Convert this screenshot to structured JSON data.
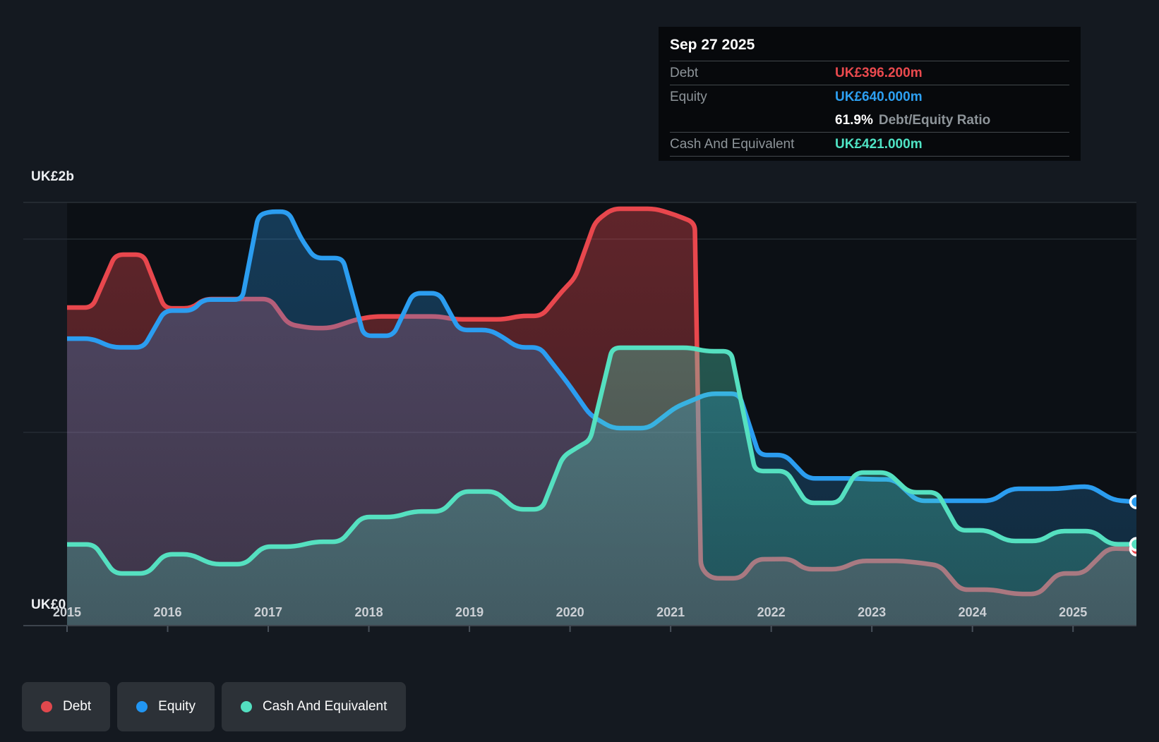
{
  "tooltip": {
    "date": "Sep 27 2025",
    "debt_label": "Debt",
    "debt_value": "UK£396.200m",
    "equity_label": "Equity",
    "equity_value": "UK£640.000m",
    "ratio_value": "61.9%",
    "ratio_label": "Debt/Equity Ratio",
    "cash_label": "Cash And Equivalent",
    "cash_value": "UK£421.000m"
  },
  "axes": {
    "y_top_label": "UK£2b",
    "y_bottom_label": "UK£0",
    "years": [
      "2015",
      "2016",
      "2017",
      "2018",
      "2019",
      "2020",
      "2021",
      "2022",
      "2023",
      "2024",
      "2025"
    ]
  },
  "legend": {
    "items": [
      {
        "label": "Debt",
        "color": "#e0484d"
      },
      {
        "label": "Equity",
        "color": "#2196f3"
      },
      {
        "label": "Cash And Equivalent",
        "color": "#53dfc0"
      }
    ]
  },
  "chart_data": {
    "type": "area",
    "unit": "UK£ millions",
    "title": "Debt to Equity History",
    "x_range": [
      2015.0,
      2025.63
    ],
    "ylim": [
      0,
      2190
    ],
    "grid_values": [
      2000,
      1000,
      0
    ],
    "y_axis_labels": [
      {
        "text": "UK£2b",
        "value": 2000
      },
      {
        "text": "UK£0",
        "value": 0
      }
    ],
    "x_ticks": [
      2015,
      2016,
      2017,
      2018,
      2019,
      2020,
      2021,
      2022,
      2023,
      2024,
      2025
    ],
    "legend_position": "bottom-left",
    "series": [
      {
        "name": "Debt",
        "color": "#e8474d",
        "fill_top_opacity": 0.38,
        "fill_bottom_opacity": 0.24,
        "points": [
          [
            2015.0,
            1646
          ],
          [
            2015.25,
            1646
          ],
          [
            2015.48,
            1920
          ],
          [
            2015.76,
            1920
          ],
          [
            2015.97,
            1642
          ],
          [
            2016.24,
            1642
          ],
          [
            2016.36,
            1690
          ],
          [
            2017.02,
            1690
          ],
          [
            2017.2,
            1560
          ],
          [
            2017.42,
            1540
          ],
          [
            2017.62,
            1540
          ],
          [
            2017.88,
            1585
          ],
          [
            2018.05,
            1600
          ],
          [
            2018.7,
            1600
          ],
          [
            2018.85,
            1585
          ],
          [
            2019.35,
            1585
          ],
          [
            2019.5,
            1603
          ],
          [
            2019.72,
            1603
          ],
          [
            2019.92,
            1730
          ],
          [
            2020.05,
            1800
          ],
          [
            2020.25,
            2090
          ],
          [
            2020.42,
            2157
          ],
          [
            2020.85,
            2157
          ],
          [
            2021.05,
            2125
          ],
          [
            2021.24,
            2085
          ],
          [
            2021.3,
            300
          ],
          [
            2021.4,
            245
          ],
          [
            2021.7,
            245
          ],
          [
            2021.85,
            343
          ],
          [
            2022.2,
            345
          ],
          [
            2022.33,
            292
          ],
          [
            2022.68,
            292
          ],
          [
            2022.87,
            335
          ],
          [
            2023.3,
            335
          ],
          [
            2023.52,
            322
          ],
          [
            2023.68,
            310
          ],
          [
            2023.88,
            186
          ],
          [
            2024.2,
            186
          ],
          [
            2024.42,
            164
          ],
          [
            2024.66,
            164
          ],
          [
            2024.85,
            270
          ],
          [
            2025.1,
            270
          ],
          [
            2025.35,
            400
          ],
          [
            2025.63,
            396
          ]
        ]
      },
      {
        "name": "Equity",
        "color": "#2b9df0",
        "fill_top_opacity": 0.3,
        "fill_bottom_opacity": 0.18,
        "points": [
          [
            2015.0,
            1485
          ],
          [
            2015.25,
            1485
          ],
          [
            2015.45,
            1440
          ],
          [
            2015.76,
            1440
          ],
          [
            2015.97,
            1630
          ],
          [
            2016.25,
            1630
          ],
          [
            2016.35,
            1687
          ],
          [
            2016.74,
            1687
          ],
          [
            2016.9,
            2120
          ],
          [
            2017.0,
            2142
          ],
          [
            2017.2,
            2142
          ],
          [
            2017.33,
            2000
          ],
          [
            2017.46,
            1902
          ],
          [
            2017.74,
            1902
          ],
          [
            2017.95,
            1500
          ],
          [
            2018.24,
            1500
          ],
          [
            2018.44,
            1720
          ],
          [
            2018.7,
            1720
          ],
          [
            2018.9,
            1530
          ],
          [
            2019.2,
            1530
          ],
          [
            2019.32,
            1497
          ],
          [
            2019.48,
            1440
          ],
          [
            2019.7,
            1440
          ],
          [
            2019.97,
            1260
          ],
          [
            2020.2,
            1090
          ],
          [
            2020.42,
            1022
          ],
          [
            2020.78,
            1022
          ],
          [
            2021.05,
            1130
          ],
          [
            2021.37,
            1200
          ],
          [
            2021.68,
            1200
          ],
          [
            2021.88,
            883
          ],
          [
            2022.14,
            883
          ],
          [
            2022.36,
            762
          ],
          [
            2022.82,
            762
          ],
          [
            2023.0,
            757
          ],
          [
            2023.22,
            757
          ],
          [
            2023.45,
            646
          ],
          [
            2024.2,
            646
          ],
          [
            2024.38,
            708
          ],
          [
            2024.85,
            708
          ],
          [
            2025.05,
            719
          ],
          [
            2025.18,
            719
          ],
          [
            2025.4,
            650
          ],
          [
            2025.63,
            640
          ]
        ]
      },
      {
        "name": "Cash And Equivalent",
        "color": "#55e0c0",
        "fill_top_opacity": 0.34,
        "fill_bottom_opacity": 0.22,
        "points": [
          [
            2015.0,
            420
          ],
          [
            2015.27,
            420
          ],
          [
            2015.47,
            270
          ],
          [
            2015.8,
            270
          ],
          [
            2015.97,
            369
          ],
          [
            2016.23,
            369
          ],
          [
            2016.44,
            318
          ],
          [
            2016.77,
            318
          ],
          [
            2016.95,
            409
          ],
          [
            2017.26,
            409
          ],
          [
            2017.47,
            434
          ],
          [
            2017.72,
            434
          ],
          [
            2017.93,
            562
          ],
          [
            2018.25,
            562
          ],
          [
            2018.45,
            591
          ],
          [
            2018.73,
            591
          ],
          [
            2018.92,
            694
          ],
          [
            2019.26,
            694
          ],
          [
            2019.46,
            602
          ],
          [
            2019.72,
            602
          ],
          [
            2019.93,
            876
          ],
          [
            2020.1,
            931
          ],
          [
            2020.2,
            960
          ],
          [
            2020.42,
            1438
          ],
          [
            2021.2,
            1438
          ],
          [
            2021.35,
            1420
          ],
          [
            2021.6,
            1420
          ],
          [
            2021.84,
            800
          ],
          [
            2022.15,
            800
          ],
          [
            2022.35,
            635
          ],
          [
            2022.67,
            635
          ],
          [
            2022.84,
            792
          ],
          [
            2023.16,
            792
          ],
          [
            2023.37,
            690
          ],
          [
            2023.65,
            690
          ],
          [
            2023.86,
            493
          ],
          [
            2024.15,
            493
          ],
          [
            2024.35,
            438
          ],
          [
            2024.67,
            438
          ],
          [
            2024.84,
            489
          ],
          [
            2025.2,
            489
          ],
          [
            2025.37,
            421
          ],
          [
            2025.63,
            421
          ]
        ]
      }
    ],
    "end_markers": [
      {
        "series": "Debt",
        "value": 396.2
      },
      {
        "series": "Cash And Equivalent",
        "value": 421.0
      },
      {
        "series": "Equity",
        "value": 640.0
      }
    ]
  }
}
